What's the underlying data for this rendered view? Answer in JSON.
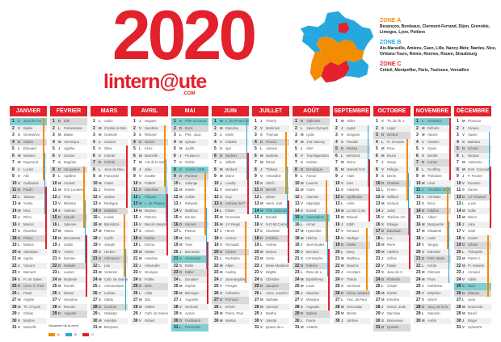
{
  "header": {
    "year": "2020",
    "logo_main": "lintern@ute",
    "logo_domain": ".COM"
  },
  "zones": [
    {
      "title": "ZONE A",
      "color": "#f28c00",
      "cities": "Besançon, Bordeaux, Clermont-Ferrand, Dijon, Grenoble, Limoges, Lyon, Poitiers"
    },
    {
      "title": "ZONE B",
      "color": "#26a8df",
      "cities": "Aix-Marseille, Amiens, Caen, Lille, Nancy-Metz, Nantes, Nice, Orléans-Tours, Reims, Rennes, Rouen, Strasbourg"
    },
    {
      "title": "ZONE C",
      "color": "#e2212d",
      "cities": "Créteil, Montpellier, Paris, Toulouse, Versailles"
    }
  ],
  "legend": {
    "title": "Vacances de la zone",
    "a": "A",
    "b": "B",
    "c": "C"
  },
  "months": [
    {
      "name": "JANVIER",
      "days": 31,
      "start": 3
    },
    {
      "name": "FÉVRIER",
      "days": 29,
      "start": 6
    },
    {
      "name": "MARS",
      "days": 31,
      "start": 0
    },
    {
      "name": "AVRIL",
      "days": 30,
      "start": 3
    },
    {
      "name": "MAI",
      "days": 31,
      "start": 5
    },
    {
      "name": "JUIN",
      "days": 30,
      "start": 1
    },
    {
      "name": "JUILLET",
      "days": 31,
      "start": 3
    },
    {
      "name": "AOÛT",
      "days": 31,
      "start": 6
    },
    {
      "name": "SEPTEMBRE",
      "days": 30,
      "start": 2
    },
    {
      "name": "OCTOBRE",
      "days": 31,
      "start": 4
    },
    {
      "name": "NOVEMBRE",
      "days": 30,
      "start": 0
    },
    {
      "name": "DÉCEMBRE",
      "days": 31,
      "start": 2
    }
  ],
  "weekday_letters": [
    "L",
    "M",
    "M",
    "J",
    "V",
    "S",
    "D"
  ],
  "holidays": {
    "0": {
      "1": "Jour de l'An"
    },
    "3": {
      "12": "Pâques",
      "13": "L. de Pâques"
    },
    "4": {
      "1": "Fête du travail",
      "8": "Victoire 1945",
      "21": "Ascension",
      "31": "Pentecôte"
    },
    "5": {
      "1": "L. de Pentecôte"
    },
    "6": {
      "14": "Fête Nationale"
    },
    "7": {
      "15": "Assomption"
    },
    "10": {
      "1": "Toussaint",
      "11": "Armistice 1918"
    },
    "11": {
      "25": "Noël"
    }
  },
  "saints": {
    "0": [
      "Jour de l'An",
      "Basile",
      "Geneviève",
      "Odilon",
      "Edouard",
      "Mélaine",
      "Raymond",
      "Lucien",
      "Alix",
      "Guillaume",
      "Paulin",
      "Tatiana",
      "Yvette",
      "Nina",
      "Rémi",
      "Marcel",
      "Roseline",
      "Prisca",
      "Marius",
      "Sébastien",
      "Agnès",
      "Vincent",
      "Barnard",
      "Fr. de Sales",
      "Conv. S. Paul",
      "Paule",
      "Angèle",
      "Th. d'Aquin",
      "Gildas",
      "Martine",
      "Marcelle"
    ],
    "1": [
      "Ella",
      "Présentation",
      "Blaise",
      "Véronique",
      "Agathe",
      "Gaston",
      "Eugénie",
      "Jacqueline",
      "Apolline",
      "Arnaud",
      "N-D Lourdes",
      "Félix",
      "Béatrice",
      "Valentin",
      "Claude",
      "Julienne",
      "Alexis",
      "Bernadette",
      "Gabin",
      "Aimée",
      "Damien",
      "Isabelle",
      "Lazare",
      "Modeste",
      "Roméo",
      "Nestor",
      "Honorine",
      "Romain",
      "Auguste"
    ],
    "2": [
      "Aubin",
      "Charles le Bon",
      "Guénolé",
      "Casimir",
      "Olive",
      "Colette",
      "Félicité",
      "Jean de Dieu",
      "Françoise",
      "Vivien",
      "Rosine",
      "Justine",
      "Rodrigue",
      "Mathilde",
      "Louise",
      "Bénédicte",
      "Patrice",
      "Cyrille",
      "Joseph",
      "Herbert",
      "Clémence",
      "Léa",
      "Victorien",
      "Cath. de Suède",
      "Annonciation",
      "Larissa",
      "Habib",
      "Gontran",
      "Gwladys",
      "Amédée",
      "Benjamin"
    ],
    "3": [
      "Hugues",
      "Sandrine",
      "Richard",
      "Isidore",
      "Irène",
      "Marcellin",
      "J-B de la Salle",
      "Julie",
      "Gautier",
      "Fulbert",
      "Stanislas",
      "Pâques",
      "L. de Pâques",
      "Maxime",
      "Paterne",
      "Benoît-Joseph",
      "Anicet",
      "Parfait",
      "Emma",
      "Odette",
      "Anselme",
      "Alexandre",
      "Georges",
      "Fidèle",
      "Marc",
      "Alida",
      "Zita",
      "Valérie",
      "Cath. de Sienne",
      "Robert"
    ],
    "4": [
      "Fête du travail",
      "Boris",
      "Phil., Jacq.",
      "Sylvain",
      "Judith",
      "Prudence",
      "Gisèle",
      "Victoire 1945",
      "Pacôme",
      "Solange",
      "Estelle",
      "Achille",
      "Rolande",
      "Matthias",
      "Denise",
      "Honoré",
      "Pascal",
      "Eric",
      "Yves",
      "Bernardin",
      "Ascension",
      "Emile",
      "Didier",
      "Donatien",
      "Sophie",
      "Bérenger",
      "Augustin",
      "Germain",
      "Aymar",
      "Ferdinand",
      "Pentecôte"
    ],
    "5": [
      "L. de Pentecôte",
      "Blandine",
      "Kévin",
      "Clotilde",
      "Igor",
      "Norbert",
      "Gilbert",
      "Médard",
      "Diane",
      "Landry",
      "Barnabé",
      "Guy",
      "Antoine de P.",
      "Elisée",
      "Germaine",
      "J-F Régis",
      "Hervé",
      "Léonce",
      "Romuald",
      "Silvère",
      "Rodolphe",
      "Alban",
      "Audrey",
      "Jean-Baptiste",
      "Prosper",
      "Anthelme",
      "Fernand",
      "Irénée",
      "Pierre, Paul",
      "Martial"
    ],
    "6": [
      "Thierry",
      "Martinien",
      "Thomas",
      "Florent",
      "Antoine",
      "Mariette",
      "Raoul",
      "Thibaut",
      "Amandine",
      "Ulrich",
      "Benoît",
      "Olivier",
      "Henri, Joël",
      "Fête Nationale",
      "Donald",
      "N-D Mt Carmel",
      "Charlotte",
      "Frédéric",
      "Arsène",
      "Marina",
      "Victor",
      "Marie-Madeleine",
      "Brigitte",
      "Christine",
      "Jacques",
      "Anne, Joachim",
      "Nathalie",
      "Samson",
      "Marthe",
      "Juliette",
      "Ignace de L."
    ],
    "7": [
      "Alphonse",
      "Julien-Eymard",
      "Lydie",
      "J-M Vianney",
      "Abel",
      "Transfiguration",
      "Gaétan",
      "Dominique",
      "Amour",
      "Laurent",
      "Claire",
      "Clarisse",
      "Hippolyte",
      "Evrard",
      "Assomption",
      "Armel",
      "Hyacinthe",
      "Hélène",
      "Jean-Eudes",
      "Bernard",
      "Christophe",
      "Fabrice",
      "Rose de L.",
      "Barthélemy",
      "Louis",
      "Natacha",
      "Monique",
      "Augustin",
      "Sabine",
      "Fiacre",
      "Aristide"
    ],
    "8": [
      "Gilles",
      "Ingrid",
      "Grégoire",
      "Rosalie",
      "Raïssa",
      "Bertrand",
      "Reine",
      "Nativité N-D",
      "Alain",
      "Inès",
      "Adelphe",
      "Apollinaire",
      "Aimé",
      "La Ste Croix",
      "Roland",
      "Edith",
      "Renaud",
      "Nadège",
      "Emilie",
      "Davy",
      "Matthieu",
      "Maurice",
      "Constant",
      "Thècle",
      "Hermann",
      "Côme, Damien",
      "Vinc. de Paul",
      "Venceslas",
      "Michel",
      "Jérôme"
    ],
    "9": [
      "Th. de l'E.J.",
      "Léger",
      "Gérard",
      "Fr. d'Assise",
      "Fleur",
      "Bruno",
      "Serge",
      "Pélagie",
      "Denis",
      "Ghislain",
      "Firmin",
      "Wilfried",
      "Géraud",
      "Juste",
      "Thérèse d'A.",
      "Edwige",
      "Baudouin",
      "Luc",
      "René",
      "Adeline",
      "Céline",
      "Elodie",
      "Jean de C.",
      "Florentin",
      "Crépin",
      "Dimitri",
      "Emeline",
      "Simon, Jude",
      "Narcisse",
      "Bienvenue",
      "Quentin"
    ],
    "10": [
      "Toussaint",
      "Défunts",
      "Hubert",
      "Charles",
      "Sylvie",
      "Bertille",
      "Carine",
      "Geoffroy",
      "Théodore",
      "Léon",
      "Armistice 1918",
      "Christian",
      "Brice",
      "Sidoine",
      "Albert",
      "Marguerite",
      "Elisabeth",
      "Aude",
      "Tanguy",
      "Edmond",
      "Prés. Marie",
      "Cécile",
      "Clément",
      "Flora",
      "Catherine",
      "Delphine",
      "Sévrin",
      "Jacq. de la M.",
      "Saturnin",
      "André"
    ],
    "11": [
      "Florence",
      "Viviane",
      "Xavier",
      "Barbara",
      "Gérald",
      "Nicolas",
      "Ambroise",
      "Imm. Concept.",
      "P. Fourier",
      "Romaric",
      "Daniel",
      "J-F Chantal",
      "Lucie",
      "Odile",
      "Ninon",
      "Alice",
      "Gaël",
      "Gatien",
      "Urbain",
      "Théophile",
      "Pierre C.",
      "Fr.-Xavière",
      "Armand",
      "Adèle",
      "Noël",
      "Etienne",
      "Jean",
      "Innocents",
      "David",
      "Roger",
      "Sylvestre"
    ]
  }
}
